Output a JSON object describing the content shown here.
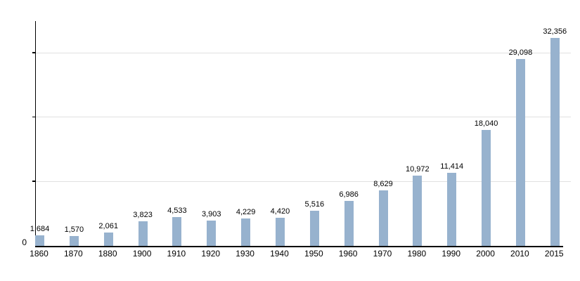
{
  "chart_data": {
    "type": "bar",
    "title": "",
    "xlabel": "",
    "ylabel": "",
    "categories": [
      "1860",
      "1870",
      "1880",
      "1900",
      "1910",
      "1920",
      "1930",
      "1940",
      "1950",
      "1960",
      "1970",
      "1980",
      "1990",
      "2000",
      "2010",
      "2015"
    ],
    "values": [
      1684,
      1570,
      2061,
      3823,
      4533,
      3903,
      4229,
      4420,
      5516,
      6986,
      8629,
      10972,
      11414,
      18040,
      29098,
      32356
    ],
    "value_labels": [
      "1,684",
      "1,570",
      "2,061",
      "3,823",
      "4,533",
      "3,903",
      "4,229",
      "4,420",
      "5,516",
      "6,986",
      "8,629",
      "10,972",
      "11,414",
      "18,040",
      "29,098",
      "32,356"
    ],
    "ylim": [
      0,
      35000
    ],
    "gridlines": [
      10000,
      20000,
      30000
    ],
    "origin_label": "0",
    "grid": true,
    "legend": false,
    "bar_color": "#97b2ce",
    "gridline_color": "#e0e0e0",
    "axis_color": "#000000",
    "text_color": "#000000"
  }
}
